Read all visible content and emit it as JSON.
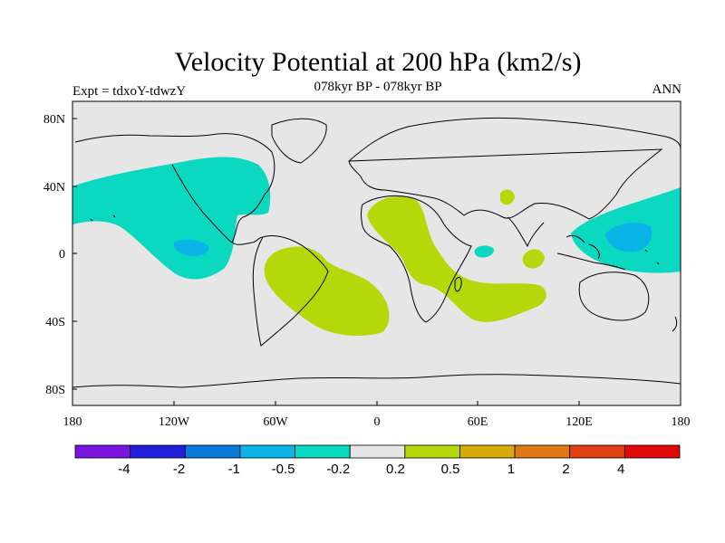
{
  "title": "Velocity Potential at 200 hPa (km2/s)",
  "subtitle": "078kyr BP - 078kyr BP",
  "left_label": "Expt = tdxoY-tdwzY",
  "right_label": "ANN",
  "map": {
    "projection": "cylindrical equidistant",
    "lon_range": [
      -180,
      180
    ],
    "lat_range": [
      -90,
      90
    ],
    "x_tick_labels": [
      "180",
      "120W",
      "60W",
      "0",
      "60E",
      "120E",
      "180"
    ],
    "y_tick_labels": [
      "80N",
      "40N",
      "0",
      "40S",
      "80S"
    ],
    "background_color": "#e6e6e6",
    "coastlines": true
  },
  "colorbar": {
    "labels": [
      "-4",
      "-2",
      "-1",
      "-0.5",
      "-0.2",
      "0.2",
      "0.5",
      "1",
      "2",
      "4"
    ],
    "colors": [
      "#7a14e0",
      "#2020d8",
      "#0a78d8",
      "#0ab4e6",
      "#0ad8c0",
      "#e6e6e6",
      "#b4d80a",
      "#d8aa0a",
      "#e07814",
      "#e04014",
      "#e00a0a"
    ]
  },
  "field_colors": {
    "neg_02": "#0ad8c0",
    "neg_05": "#0ab4e6",
    "pos_02": "#b4d80a"
  }
}
